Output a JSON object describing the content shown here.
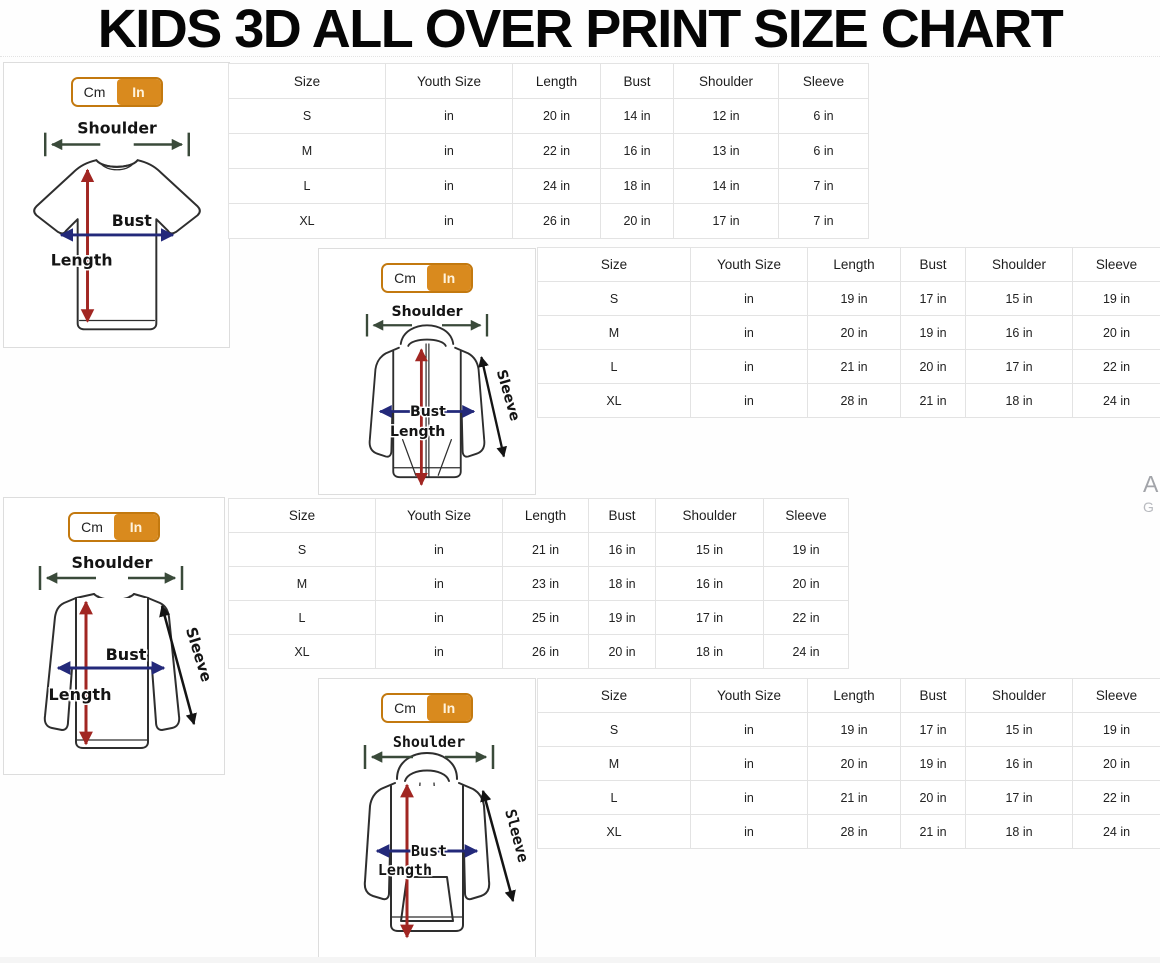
{
  "title": "KIDS 3D ALL OVER PRINT SIZE CHART",
  "unit_toggle": {
    "cm_label": "Cm",
    "in_label": "In",
    "selected": "In"
  },
  "diagram_labels": {
    "shoulder": "Shoulder",
    "bust": "Bust",
    "length": "Length",
    "sleeve": "Sleeve"
  },
  "table_headers": [
    "Size",
    "Youth Size",
    "Length",
    "Bust",
    "Shoulder",
    "Sleeve"
  ],
  "sections": [
    {
      "garment": "t-shirt",
      "rows": [
        [
          "S",
          "in",
          "20 in",
          "14 in",
          "12 in",
          "6 in"
        ],
        [
          "M",
          "in",
          "22 in",
          "16 in",
          "13 in",
          "6 in"
        ],
        [
          "L",
          "in",
          "24 in",
          "18 in",
          "14 in",
          "7 in"
        ],
        [
          "XL",
          "in",
          "26 in",
          "20 in",
          "17 in",
          "7 in"
        ]
      ]
    },
    {
      "garment": "zip-hoodie",
      "rows": [
        [
          "S",
          "in",
          "19 in",
          "17 in",
          "15 in",
          "19 in"
        ],
        [
          "M",
          "in",
          "20 in",
          "19 in",
          "16 in",
          "20 in"
        ],
        [
          "L",
          "in",
          "21 in",
          "20 in",
          "17 in",
          "22 in"
        ],
        [
          "XL",
          "in",
          "28 in",
          "21 in",
          "18 in",
          "24 in"
        ]
      ]
    },
    {
      "garment": "long-sleeve-shirt",
      "rows": [
        [
          "S",
          "in",
          "21 in",
          "16 in",
          "15 in",
          "19 in"
        ],
        [
          "M",
          "in",
          "23 in",
          "18 in",
          "16 in",
          "20 in"
        ],
        [
          "L",
          "in",
          "25 in",
          "19 in",
          "17 in",
          "22 in"
        ],
        [
          "XL",
          "in",
          "26 in",
          "20 in",
          "18 in",
          "24 in"
        ]
      ]
    },
    {
      "garment": "hoodie",
      "rows": [
        [
          "S",
          "in",
          "19 in",
          "17 in",
          "15 in",
          "19 in"
        ],
        [
          "M",
          "in",
          "20 in",
          "19 in",
          "16 in",
          "20 in"
        ],
        [
          "L",
          "in",
          "21 in",
          "20 in",
          "17 in",
          "22 in"
        ],
        [
          "XL",
          "in",
          "28 in",
          "21 in",
          "18 in",
          "24 in"
        ]
      ]
    }
  ],
  "watermark": {
    "line1": "A",
    "line2": "G"
  },
  "colors": {
    "accent_orange": "#D98A1E",
    "toggle_border": "#C3790F",
    "table_border": "#E3E3E3",
    "arrow_shoulder": "#3A4A3A",
    "arrow_bust": "#23297A",
    "arrow_length": "#A12622",
    "arrow_sleeve": "#141414"
  }
}
